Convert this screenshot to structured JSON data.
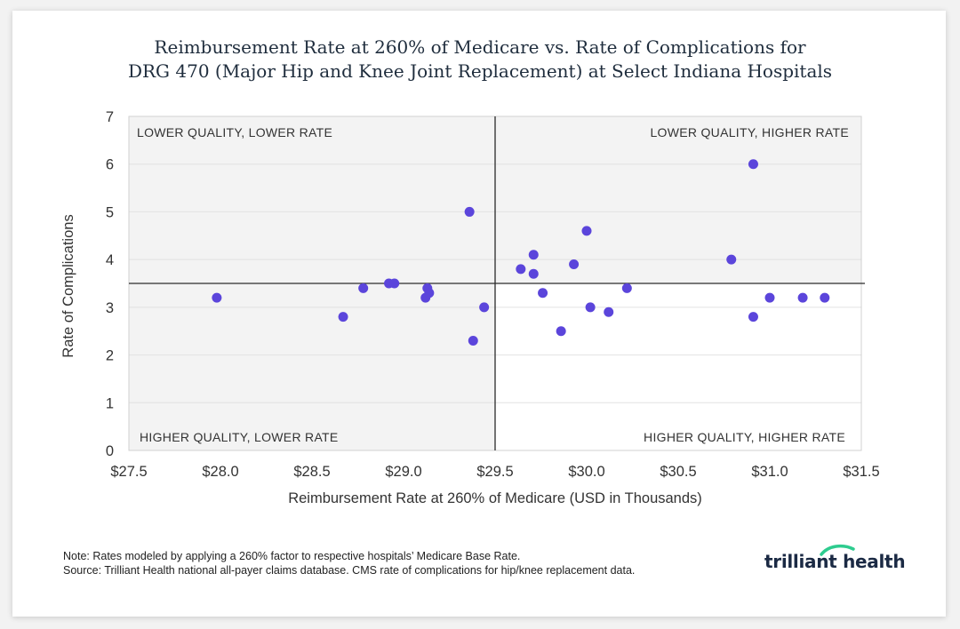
{
  "title_lines": [
    "Reimbursement Rate at 260% of Medicare vs. Rate of Complications for",
    "DRG 470 (Major Hip and Knee Joint Replacement) at Select Indiana Hospitals"
  ],
  "notes": {
    "note": "Note: Rates modeled by applying a 260% factor to respective hospitals’ Medicare Base Rate.",
    "source": "Source: Trilliant Health national all-payer claims database. CMS rate of complications for hip/knee replacement data."
  },
  "logo": {
    "text": "trilliant health",
    "accent": "#2ecc8f"
  },
  "colors": {
    "point": "#5b45db",
    "shade": "#f3f3f3",
    "grid": "#e2e2e2",
    "axis_text": "#333333"
  },
  "chart_data": {
    "type": "scatter",
    "title": "Reimbursement Rate at 260% of Medicare vs. Rate of Complications for DRG 470 (Major Hip and Knee Joint Replacement) at Select Indiana Hospitals",
    "xlabel": "Reimbursement Rate at 260% of Medicare (USD in Thousands)",
    "ylabel": "Rate of Complications",
    "xlim": [
      27.5,
      31.5
    ],
    "ylim": [
      0,
      7
    ],
    "x_ticks": [
      27.5,
      28.0,
      28.5,
      29.0,
      29.5,
      30.0,
      30.5,
      31.0,
      31.5
    ],
    "x_tick_labels": [
      "$27.5",
      "$28.0",
      "$28.5",
      "$29.0",
      "$29.5",
      "$30.0",
      "$30.5",
      "$31.0",
      "$31.5"
    ],
    "y_ticks": [
      0,
      1,
      2,
      3,
      4,
      5,
      6,
      7
    ],
    "y_tick_labels": [
      "0",
      "1",
      "2",
      "3",
      "4",
      "5",
      "6",
      "7"
    ],
    "reference_lines": {
      "x": 29.5,
      "y": 3.5
    },
    "grid": true,
    "quadrant_labels": {
      "top_left": "LOWER QUALITY, LOWER RATE",
      "top_right": "LOWER QUALITY, HIGHER RATE",
      "bottom_left": "HIGHER QUALITY, LOWER RATE",
      "bottom_right": "HIGHER QUALITY, HIGHER RATE"
    },
    "points": [
      {
        "x": 27.98,
        "y": 3.2
      },
      {
        "x": 28.67,
        "y": 2.8
      },
      {
        "x": 28.78,
        "y": 3.4
      },
      {
        "x": 28.92,
        "y": 3.5
      },
      {
        "x": 28.95,
        "y": 3.5
      },
      {
        "x": 29.12,
        "y": 3.2
      },
      {
        "x": 29.13,
        "y": 3.4
      },
      {
        "x": 29.14,
        "y": 3.3
      },
      {
        "x": 29.36,
        "y": 5.0
      },
      {
        "x": 29.38,
        "y": 2.3
      },
      {
        "x": 29.44,
        "y": 3.0
      },
      {
        "x": 29.64,
        "y": 3.8
      },
      {
        "x": 29.71,
        "y": 4.1
      },
      {
        "x": 29.71,
        "y": 3.7
      },
      {
        "x": 29.76,
        "y": 3.3
      },
      {
        "x": 29.86,
        "y": 2.5
      },
      {
        "x": 29.93,
        "y": 3.9
      },
      {
        "x": 30.0,
        "y": 4.6
      },
      {
        "x": 30.02,
        "y": 3.0
      },
      {
        "x": 30.12,
        "y": 2.9
      },
      {
        "x": 30.22,
        "y": 3.4
      },
      {
        "x": 30.79,
        "y": 4.0
      },
      {
        "x": 30.91,
        "y": 6.0
      },
      {
        "x": 30.91,
        "y": 2.8
      },
      {
        "x": 31.0,
        "y": 3.2
      },
      {
        "x": 31.18,
        "y": 3.2
      },
      {
        "x": 31.3,
        "y": 3.2
      }
    ]
  }
}
